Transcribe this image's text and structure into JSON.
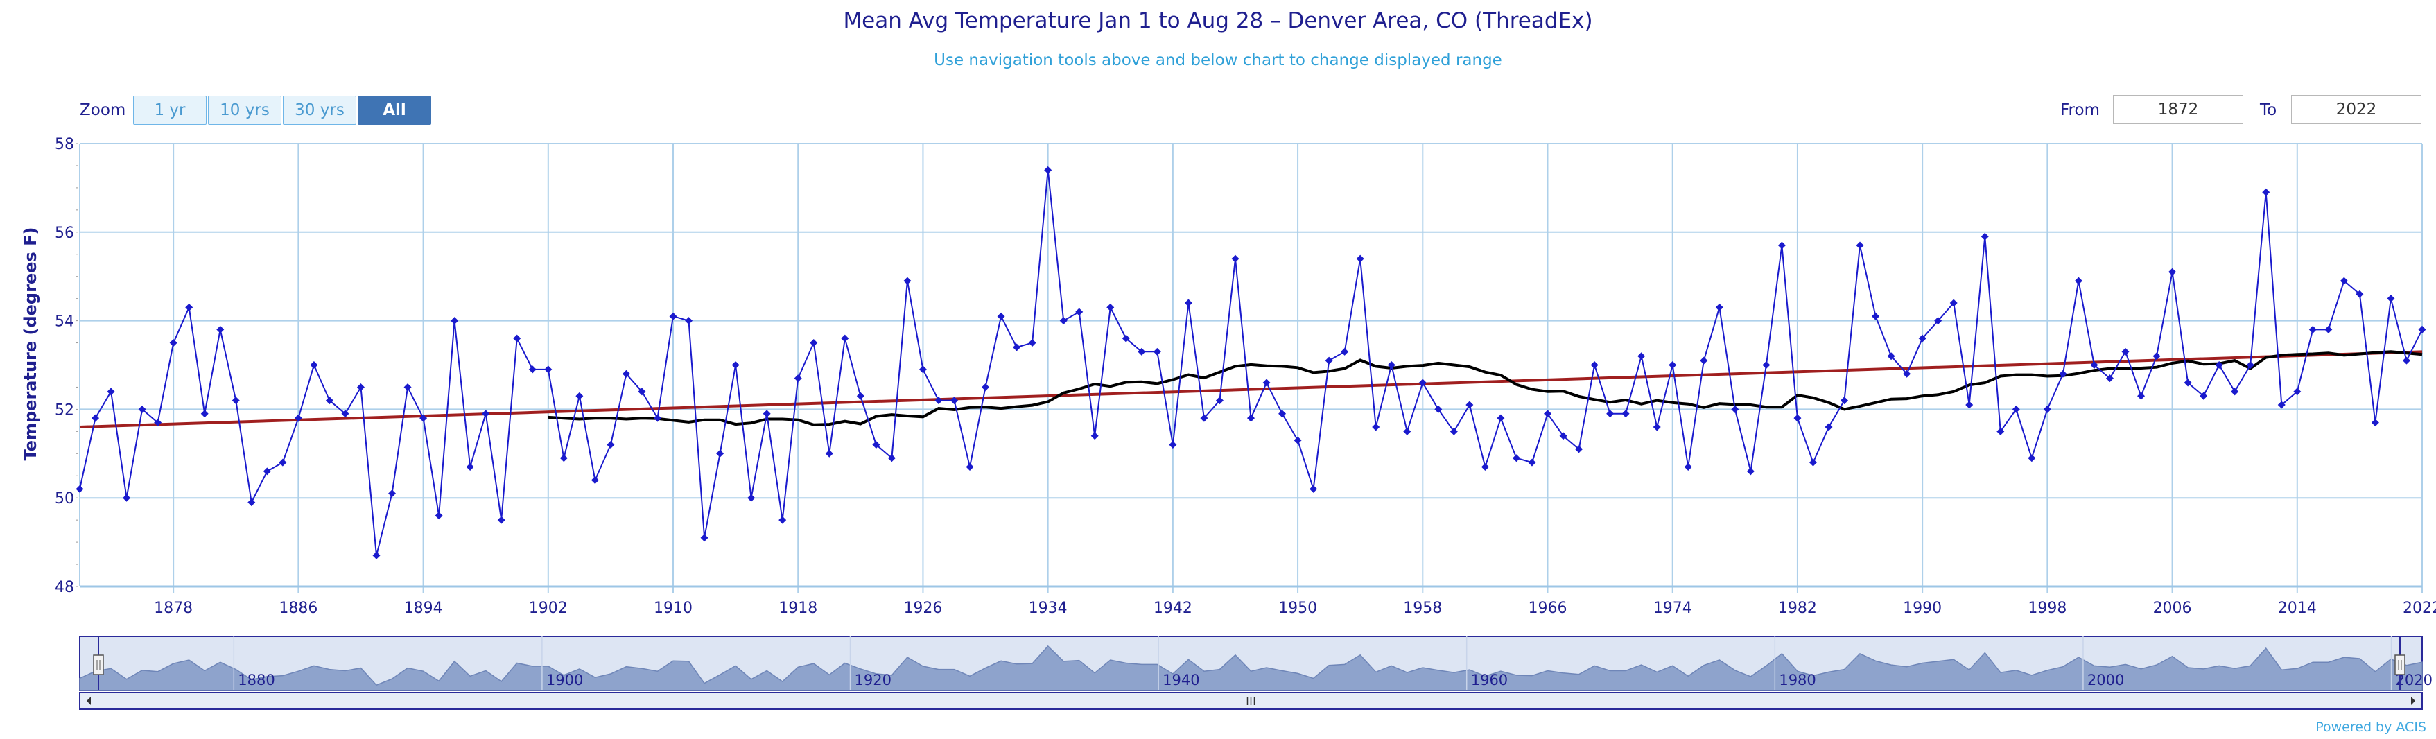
{
  "header": {
    "title": "Mean Avg Temperature Jan 1 to Aug 28 – Denver Area, CO (ThreadEx)",
    "subtitle": "Use navigation tools above and below chart to change displayed range"
  },
  "controls": {
    "zoom_label": "Zoom",
    "zoom_buttons": [
      {
        "label": "1 yr",
        "active": false
      },
      {
        "label": "10 yrs",
        "active": false
      },
      {
        "label": "30 yrs",
        "active": false
      },
      {
        "label": "All",
        "active": true
      }
    ],
    "from_label": "From",
    "from_value": "1872",
    "to_label": "To",
    "to_value": "2022"
  },
  "credit": "Powered by ACIS",
  "colors": {
    "series": "#1a1acd",
    "mean": "#000000",
    "trend": "#a01f1f",
    "grid": "#aed0ea",
    "axis_text": "#1f1f8f",
    "navigator_fill": "#8ea3cc"
  },
  "chart_data": {
    "type": "line",
    "ylabel": "Temperature (degrees F)",
    "xlabel": "",
    "ylim": [
      48,
      58
    ],
    "xlim": [
      1872,
      2022
    ],
    "yticks": [
      48,
      50,
      52,
      54,
      56,
      58
    ],
    "xticks": [
      1878,
      1886,
      1894,
      1902,
      1910,
      1918,
      1926,
      1934,
      1942,
      1950,
      1958,
      1966,
      1974,
      1982,
      1990,
      1998,
      2006,
      2014,
      2022
    ],
    "grid": true,
    "x_start": 1872,
    "series": [
      {
        "type": "line_markers",
        "values": [
          50.2,
          51.8,
          52.4,
          50.0,
          52.0,
          51.7,
          53.5,
          54.3,
          51.9,
          53.8,
          52.2,
          49.9,
          50.6,
          50.8,
          51.8,
          53.0,
          52.2,
          51.9,
          52.5,
          48.7,
          50.1,
          52.5,
          51.8,
          49.6,
          54.0,
          50.7,
          51.9,
          49.5,
          53.6,
          52.9,
          52.9,
          50.9,
          52.3,
          50.4,
          51.2,
          52.8,
          52.4,
          51.8,
          54.1,
          54.0,
          49.1,
          51.0,
          53.0,
          50.0,
          51.9,
          49.5,
          52.7,
          53.5,
          51.0,
          53.6,
          52.3,
          51.2,
          50.9,
          54.9,
          52.9,
          52.2,
          52.2,
          50.7,
          52.5,
          54.1,
          53.4,
          53.5,
          57.4,
          54.0,
          54.2,
          51.4,
          54.3,
          53.6,
          53.3,
          53.3,
          51.2,
          54.4,
          51.8,
          52.2,
          55.4,
          51.8,
          52.6,
          51.9,
          51.3,
          50.2,
          53.1,
          53.3,
          55.4,
          51.6,
          53.0,
          51.5,
          52.6,
          52.0,
          51.5,
          52.1,
          50.7,
          51.8,
          50.9,
          50.8,
          51.9,
          51.4,
          51.1,
          53.0,
          51.9,
          51.9,
          53.2,
          51.6,
          53.0,
          50.7,
          53.1,
          54.3,
          52.0,
          50.6,
          53.0,
          55.7,
          51.8,
          50.8,
          51.6,
          52.2,
          55.7,
          54.1,
          53.2,
          52.8,
          53.6,
          54.0,
          54.4,
          52.1,
          55.9,
          51.5,
          52.0,
          50.9,
          52.0,
          52.8,
          54.9,
          53.0,
          52.7,
          53.3,
          52.3,
          53.2,
          55.1,
          52.6,
          52.3,
          53.0,
          52.4,
          53.0,
          56.9,
          52.1,
          52.4,
          53.8,
          53.8,
          54.9,
          54.6,
          51.7,
          54.5,
          53.1,
          53.8
        ]
      },
      {
        "type": "running_mean",
        "x_start": 1902,
        "values": [
          51.82,
          51.8,
          51.78,
          51.8,
          51.8,
          51.78,
          51.8,
          51.79,
          51.75,
          51.71,
          51.76,
          51.76,
          51.66,
          51.69,
          51.78,
          51.78,
          51.76,
          51.65,
          51.66,
          51.73,
          51.67,
          51.84,
          51.88,
          51.85,
          51.83,
          52.02,
          51.99,
          52.04,
          52.05,
          52.02,
          52.06,
          52.09,
          52.17,
          52.37,
          52.46,
          52.57,
          52.52,
          52.61,
          52.62,
          52.58,
          52.67,
          52.78,
          52.71,
          52.84,
          52.97,
          53.01,
          52.98,
          52.97,
          52.94,
          52.83,
          52.86,
          52.92,
          53.11,
          52.97,
          52.93,
          52.97,
          52.99,
          53.04,
          53.0,
          52.96,
          52.84,
          52.77,
          52.56,
          52.45,
          52.4,
          52.41,
          52.29,
          52.22,
          52.16,
          52.21,
          52.12,
          52.2,
          52.15,
          52.12,
          52.04,
          52.13,
          52.11,
          52.1,
          52.05,
          52.05,
          52.32,
          52.26,
          52.15,
          52.0,
          52.07,
          52.15,
          52.23,
          52.24,
          52.3,
          52.33,
          52.4,
          52.55,
          52.6,
          52.75,
          52.78,
          52.78,
          52.75,
          52.76,
          52.81,
          52.88,
          52.92,
          52.92,
          52.93,
          52.95,
          53.04,
          53.09,
          53.02,
          53.03,
          53.1,
          52.92,
          53.17,
          53.22,
          53.24,
          53.25,
          53.27,
          53.22,
          53.25,
          53.28,
          53.3,
          53.27,
          53.24
        ]
      },
      {
        "type": "trend",
        "x": [
          1872,
          2022
        ],
        "values": [
          51.6,
          53.3
        ]
      }
    ],
    "navigator": {
      "year_labels": [
        "1880",
        "1900",
        "1920",
        "1940",
        "1960",
        "1980",
        "2000",
        "2020"
      ]
    }
  }
}
